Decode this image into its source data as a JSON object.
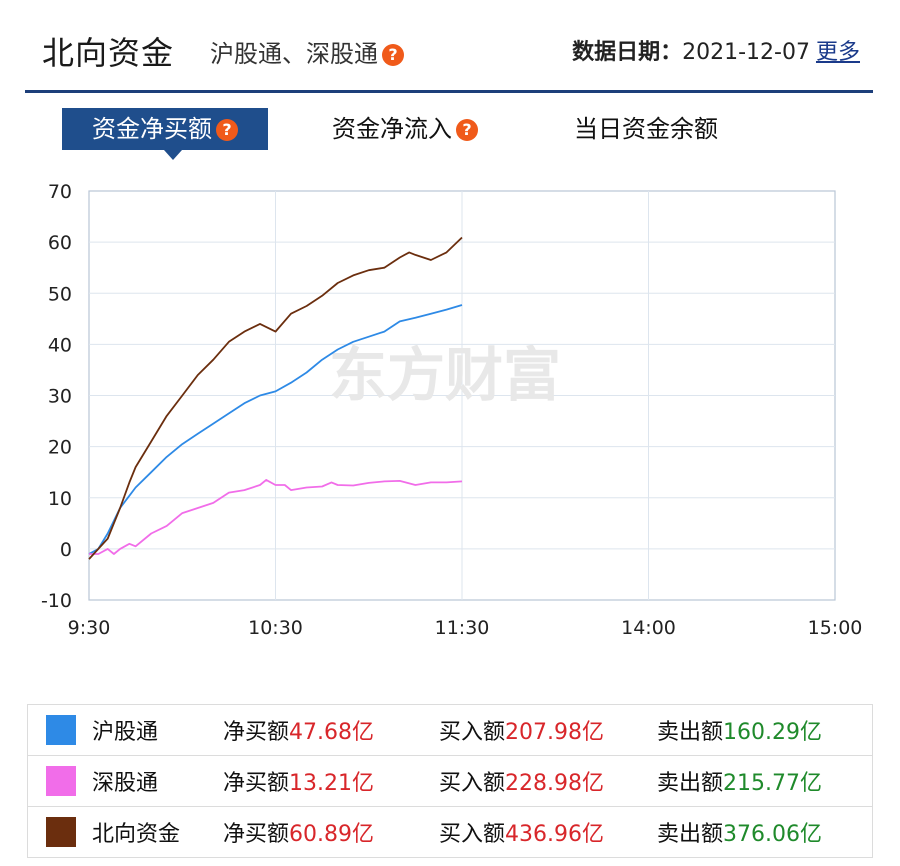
{
  "header": {
    "title": "北向资金",
    "subtitle": "沪股通、深股通",
    "date_label": "数据日期：",
    "date_value": "2021-12-07",
    "more_link": "更多"
  },
  "help_glyph": "?",
  "tabs": [
    {
      "label": "资金净买额",
      "active": true,
      "has_help": true
    },
    {
      "label": "资金净流入",
      "active": false,
      "has_help": true
    },
    {
      "label": "当日资金余额",
      "active": false,
      "has_help": false
    }
  ],
  "watermark": "东方财富",
  "colors": {
    "hgt": "#2e8ae6",
    "sgt": "#f16de9",
    "north": "#6b2e0e",
    "active_tab": "#1f4e8c",
    "positive": "#d8262a",
    "negative": "#1f8a2b"
  },
  "chart_data": {
    "type": "line",
    "title": "",
    "xlabel": "",
    "ylabel": "",
    "x_ticks": [
      "9:30",
      "10:30",
      "11:30",
      "14:00",
      "15:00"
    ],
    "y_ticks": [
      "70",
      "60",
      "50",
      "40",
      "30",
      "20",
      "10",
      "0",
      "-10"
    ],
    "ylim": [
      -10,
      70
    ],
    "grid": true,
    "series": [
      {
        "name": "沪股通",
        "color": "#2e8ae6",
        "x": [
          0,
          3,
          6,
          10,
          15,
          20,
          25,
          30,
          35,
          40,
          45,
          50,
          55,
          60,
          65,
          70,
          75,
          80,
          85,
          90,
          95,
          100,
          105,
          110,
          115,
          120
        ],
        "y": [
          -1,
          0,
          3,
          8,
          12,
          15,
          18,
          20.5,
          22.5,
          24.5,
          26.5,
          28.5,
          30,
          30.8,
          32.5,
          34.5,
          37,
          39,
          40.5,
          41.5,
          42.5,
          44.5,
          45.2,
          46,
          46.8,
          47.7
        ]
      },
      {
        "name": "深股通",
        "color": "#f16de9",
        "x": [
          0,
          3,
          6,
          8,
          10,
          13,
          15,
          20,
          25,
          30,
          35,
          40,
          45,
          50,
          55,
          57,
          60,
          63,
          65,
          70,
          75,
          78,
          80,
          85,
          90,
          95,
          100,
          105,
          110,
          115,
          120
        ],
        "y": [
          -1,
          -1,
          0,
          -1,
          0,
          1,
          0.5,
          3,
          4.5,
          7,
          8,
          9,
          11,
          11.5,
          12.5,
          13.5,
          12.5,
          12.5,
          11.5,
          12,
          12.2,
          13,
          12.5,
          12.4,
          12.9,
          13.2,
          13.3,
          12.5,
          13,
          13,
          13.2
        ]
      },
      {
        "name": "北向资金",
        "color": "#6b2e0e",
        "x": [
          0,
          3,
          6,
          8,
          10,
          13,
          15,
          20,
          25,
          30,
          35,
          40,
          45,
          50,
          55,
          60,
          65,
          70,
          75,
          80,
          85,
          90,
          95,
          100,
          103,
          105,
          110,
          115,
          120
        ],
        "y": [
          -2,
          0,
          2,
          5,
          8,
          13,
          16,
          21,
          26,
          30,
          34,
          37,
          40.5,
          42.5,
          44,
          42.5,
          46,
          47.5,
          49.5,
          52,
          53.5,
          54.5,
          55,
          57,
          58,
          57.5,
          56.5,
          58,
          60.9
        ]
      }
    ]
  },
  "legend": [
    {
      "name": "沪股通",
      "color": "#2e8ae6",
      "net_label": "净买额",
      "net": "47.68亿",
      "buy_label": "买入额",
      "buy": "207.98亿",
      "sell_label": "卖出额",
      "sell": "160.29亿"
    },
    {
      "name": "深股通",
      "color": "#f16de9",
      "net_label": "净买额",
      "net": "13.21亿",
      "buy_label": "买入额",
      "buy": "228.98亿",
      "sell_label": "卖出额",
      "sell": "215.77亿"
    },
    {
      "name": "北向资金",
      "color": "#6b2e0e",
      "net_label": "净买额",
      "net": "60.89亿",
      "buy_label": "买入额",
      "buy": "436.96亿",
      "sell_label": "卖出额",
      "sell": "376.06亿"
    }
  ]
}
